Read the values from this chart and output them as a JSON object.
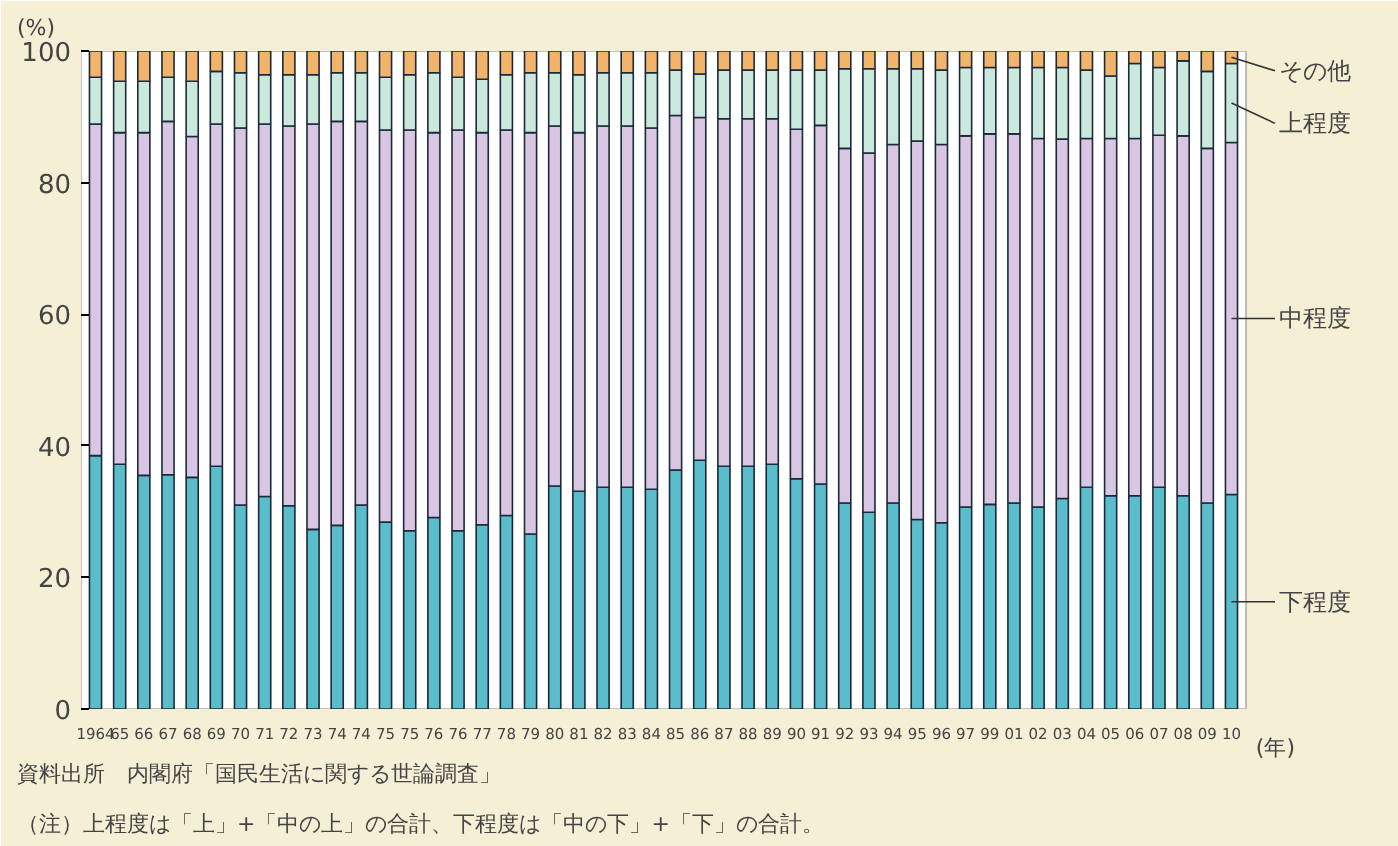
{
  "chart_data": {
    "type": "bar",
    "stacked": true,
    "ylabel": "(%)",
    "xlabel": "(年)",
    "categories": [
      "1964",
      "65",
      "66",
      "67",
      "68",
      "69",
      "70",
      "71",
      "72",
      "73",
      "74",
      "74",
      "75",
      "75",
      "76",
      "76",
      "77",
      "78",
      "79",
      "80",
      "81",
      "82",
      "83",
      "84",
      "85",
      "86",
      "87",
      "88",
      "89",
      "90",
      "91",
      "92",
      "93",
      "94",
      "95",
      "96",
      "97",
      "99",
      "01",
      "02",
      "03",
      "04",
      "05",
      "06",
      "07",
      "08",
      "09",
      "10"
    ],
    "series": [
      {
        "name": "下程度",
        "color": "#5bbccc",
        "values": [
          38.5,
          37.2,
          35.5,
          35.6,
          35.2,
          36.9,
          31.0,
          32.3,
          30.9,
          27.3,
          27.9,
          31.0,
          28.4,
          27.1,
          29.1,
          27.1,
          28.0,
          29.4,
          26.6,
          33.9,
          33.1,
          33.7,
          33.7,
          33.4,
          36.3,
          37.8,
          36.9,
          36.9,
          37.2,
          35.0,
          34.2,
          31.3,
          29.9,
          31.3,
          28.8,
          28.3,
          30.7,
          31.1,
          31.3,
          30.7,
          32.0,
          33.7,
          32.4,
          32.4,
          33.7,
          32.4,
          31.3,
          32.6
        ]
      },
      {
        "name": "中程度",
        "color": "#d9c6e3",
        "values": [
          50.4,
          50.4,
          52.1,
          53.7,
          51.8,
          52.0,
          57.3,
          56.6,
          57.7,
          61.6,
          61.4,
          58.3,
          59.6,
          60.9,
          58.5,
          60.9,
          59.6,
          58.6,
          61.0,
          54.7,
          54.5,
          54.9,
          54.9,
          54.9,
          53.9,
          52.1,
          52.8,
          52.8,
          52.5,
          53.1,
          54.5,
          53.9,
          54.6,
          54.5,
          57.5,
          57.5,
          56.4,
          56.3,
          56.1,
          56.0,
          54.6,
          53.0,
          54.3,
          54.3,
          53.5,
          54.7,
          53.9,
          53.5
        ]
      },
      {
        "name": "上程度",
        "color": "#cbe8dc",
        "values": [
          7.1,
          7.8,
          7.8,
          6.7,
          8.4,
          8.0,
          8.4,
          7.5,
          7.8,
          7.5,
          7.4,
          7.4,
          8.0,
          8.4,
          9.1,
          8.0,
          8.1,
          8.4,
          9.1,
          8.1,
          8.8,
          8.1,
          8.1,
          8.4,
          6.9,
          6.6,
          7.4,
          7.4,
          7.4,
          9.0,
          8.4,
          12.1,
          12.8,
          11.5,
          11.0,
          11.3,
          10.4,
          10.1,
          10.1,
          10.8,
          10.9,
          10.4,
          9.5,
          11.4,
          10.3,
          11.4,
          11.7,
          12.0
        ]
      },
      {
        "name": "その他",
        "color": "#f2b36a",
        "values": [
          4.0,
          4.6,
          4.6,
          4.0,
          4.6,
          3.1,
          3.3,
          3.6,
          3.6,
          3.6,
          3.3,
          3.3,
          4.0,
          3.6,
          3.3,
          4.0,
          4.3,
          3.6,
          3.3,
          3.3,
          3.6,
          3.3,
          3.3,
          3.3,
          2.9,
          3.5,
          2.9,
          2.9,
          2.9,
          2.9,
          2.9,
          2.7,
          2.7,
          2.7,
          2.7,
          2.9,
          2.5,
          2.5,
          2.5,
          2.5,
          2.5,
          2.9,
          3.8,
          1.9,
          2.5,
          1.5,
          3.1,
          1.9
        ]
      }
    ],
    "ylim": [
      0,
      100
    ],
    "yticks": [
      0,
      20,
      40,
      60,
      80,
      100
    ],
    "grid": false,
    "legend": false,
    "annotations": [
      "資料出所　内閣府「国民生活に関する世論調査」",
      "（注）上程度は「上」+「中の上」の合計、下程度は「中の下」+「下」の合計。"
    ]
  }
}
